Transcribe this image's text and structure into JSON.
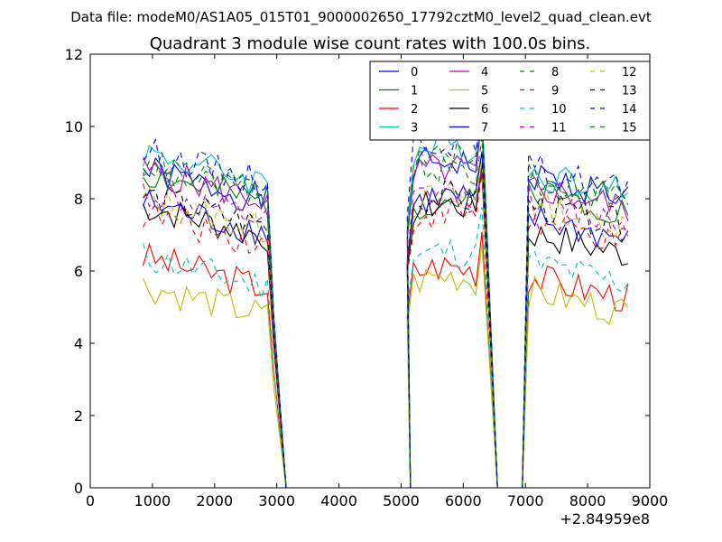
{
  "chart_data": {
    "type": "line",
    "suptitle": "Data file: modeM0/AS1A05_015T01_9000002650_17792cztM0_level2_quad_clean.evt",
    "title": "Quadrant 3 module wise count rates with 100.0s bins.",
    "xlabel": "",
    "ylabel": "",
    "x_offset_label": "+2.84959e8",
    "xlim": [
      0,
      9000
    ],
    "ylim": [
      0,
      12
    ],
    "xticks": [
      0,
      1000,
      2000,
      3000,
      4000,
      5000,
      6000,
      7000,
      8000,
      9000
    ],
    "yticks": [
      0,
      2,
      4,
      6,
      8,
      10,
      12
    ],
    "xtick_labels": [
      "0",
      "1000",
      "2000",
      "3000",
      "4000",
      "5000",
      "6000",
      "7000",
      "8000",
      "9000"
    ],
    "ytick_labels": [
      "0",
      "2",
      "4",
      "6",
      "8",
      "10",
      "12"
    ],
    "legend_position": "upper-right",
    "segments": [
      {
        "start": 850,
        "end": 2950,
        "step": 100,
        "drop_to": 3150
      },
      {
        "start": 5100,
        "end": 6350,
        "step": 100,
        "rise_from": 5150,
        "drop_to": 6550
      },
      {
        "start": 7050,
        "end": 8650,
        "step": 100,
        "rise_from": 6950
      }
    ],
    "series": [
      {
        "name": "0",
        "style": "solid",
        "color": "#0000ff",
        "levels": [
          8.3,
          8.8,
          8.3
        ]
      },
      {
        "name": "1",
        "style": "solid",
        "color": "#008000",
        "levels": [
          8.2,
          7.7,
          7.9
        ]
      },
      {
        "name": "2",
        "style": "solid",
        "color": "#ff0000",
        "levels": [
          5.9,
          5.9,
          5.5
        ]
      },
      {
        "name": "3",
        "style": "solid",
        "color": "#00bfbf",
        "levels": [
          8.8,
          9.2,
          8.4
        ]
      },
      {
        "name": "4",
        "style": "solid",
        "color": "#bf00bf",
        "levels": [
          8.3,
          8.6,
          8.0
        ]
      },
      {
        "name": "5",
        "style": "solid",
        "color": "#bfbf00",
        "levels": [
          5.1,
          5.6,
          5.1
        ]
      },
      {
        "name": "6",
        "style": "solid",
        "color": "#000000",
        "levels": [
          7.3,
          7.6,
          6.7
        ]
      },
      {
        "name": "7",
        "style": "solid",
        "color": "#0000ff",
        "levels": [
          7.4,
          7.8,
          7.1
        ]
      },
      {
        "name": "8",
        "style": "dashed",
        "color": "#008000",
        "levels": [
          8.4,
          8.6,
          8.2
        ]
      },
      {
        "name": "9",
        "style": "dashed",
        "color": "#ff0000",
        "levels": [
          7.1,
          7.4,
          7.0
        ]
      },
      {
        "name": "10",
        "style": "dashed",
        "color": "#00bfbf",
        "levels": [
          5.9,
          6.3,
          5.9
        ]
      },
      {
        "name": "11",
        "style": "dashed",
        "color": "#bf00bf",
        "levels": [
          7.7,
          7.9,
          7.6
        ]
      },
      {
        "name": "12",
        "style": "dashed",
        "color": "#bfbf00",
        "levels": [
          7.5,
          7.8,
          7.5
        ]
      },
      {
        "name": "13",
        "style": "dashed",
        "color": "#000000",
        "levels": [
          7.6,
          7.8,
          7.5
        ]
      },
      {
        "name": "14",
        "style": "dashed",
        "color": "#0000ff",
        "levels": [
          8.8,
          9.4,
          8.5
        ]
      },
      {
        "name": "15",
        "style": "dashed",
        "color": "#008000",
        "levels": [
          8.5,
          8.9,
          8.3
        ]
      }
    ]
  }
}
